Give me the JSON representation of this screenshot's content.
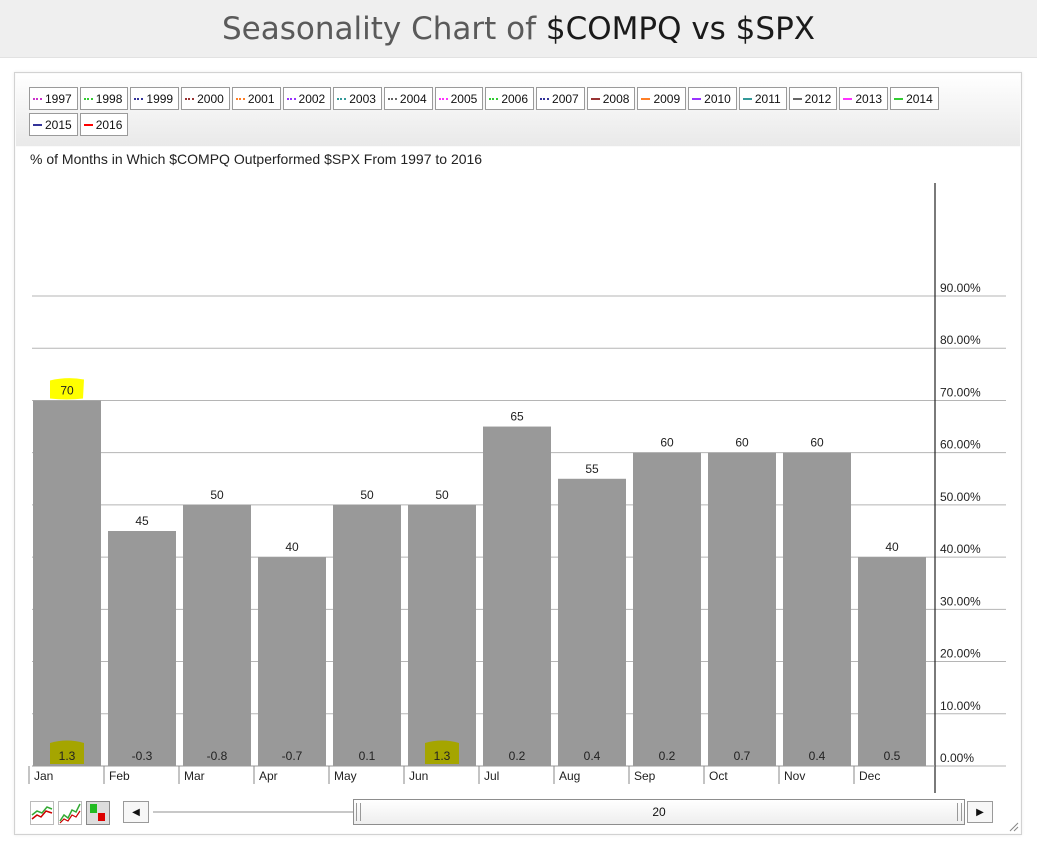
{
  "header": {
    "title_prefix": "Seasonality Chart of ",
    "title_symbols": "$COMPQ vs $SPX"
  },
  "legend": [
    {
      "label": "1997",
      "color": "#cc33cc",
      "style": "dotted"
    },
    {
      "label": "1998",
      "color": "#33cc33",
      "style": "dotted"
    },
    {
      "label": "1999",
      "color": "#333399",
      "style": "dotted"
    },
    {
      "label": "2000",
      "color": "#993333",
      "style": "dotted"
    },
    {
      "label": "2001",
      "color": "#ff7f27",
      "style": "dotted"
    },
    {
      "label": "2002",
      "color": "#9933ff",
      "style": "dotted"
    },
    {
      "label": "2003",
      "color": "#339999",
      "style": "dotted"
    },
    {
      "label": "2004",
      "color": "#666666",
      "style": "dotted"
    },
    {
      "label": "2005",
      "color": "#ff33ff",
      "style": "dotted"
    },
    {
      "label": "2006",
      "color": "#33cc33",
      "style": "dotted"
    },
    {
      "label": "2007",
      "color": "#333399",
      "style": "dotted"
    },
    {
      "label": "2008",
      "color": "#993333",
      "style": "solid"
    },
    {
      "label": "2009",
      "color": "#ff7f27",
      "style": "solid"
    },
    {
      "label": "2010",
      "color": "#9933ff",
      "style": "solid"
    },
    {
      "label": "2011",
      "color": "#339999",
      "style": "solid"
    },
    {
      "label": "2012",
      "color": "#666666",
      "style": "solid"
    },
    {
      "label": "2013",
      "color": "#ff33ff",
      "style": "solid"
    },
    {
      "label": "2014",
      "color": "#33cc33",
      "style": "solid"
    },
    {
      "label": "2015",
      "color": "#333399",
      "style": "solid"
    },
    {
      "label": "2016",
      "color": "#ff0000",
      "style": "solid"
    }
  ],
  "chart_subtitle": "% of Months in Which $COMPQ Outperformed $SPX From 1997 to 2016",
  "chart_data": {
    "type": "bar",
    "categories": [
      "Jan",
      "Feb",
      "Mar",
      "Apr",
      "May",
      "Jun",
      "Jul",
      "Aug",
      "Sep",
      "Oct",
      "Nov",
      "Dec"
    ],
    "values": [
      70,
      45,
      50,
      40,
      50,
      50,
      65,
      55,
      60,
      60,
      60,
      40
    ],
    "bottom_labels": [
      "1.3",
      "-0.3",
      "-0.8",
      "-0.7",
      "0.1",
      "1.3",
      "0.2",
      "0.4",
      "0.2",
      "0.7",
      "0.4",
      "0.5"
    ],
    "value_highlight": [
      0
    ],
    "bottom_highlight": [
      0,
      5
    ],
    "ylim": [
      0,
      100
    ],
    "yticks": [
      "0.00%",
      "10.00%",
      "20.00%",
      "30.00%",
      "40.00%",
      "50.00%",
      "60.00%",
      "70.00%",
      "80.00%",
      "90.00%"
    ],
    "axis_position": "right",
    "grid": true,
    "bar_color": "#999999",
    "highlight_color": "#ffff00",
    "bottom_highlight_color": "#a5a500"
  },
  "controls": {
    "period_value": "20",
    "icons": [
      "line-chart-icon",
      "candlestick-chart-icon",
      "bar-chart-icon"
    ]
  }
}
